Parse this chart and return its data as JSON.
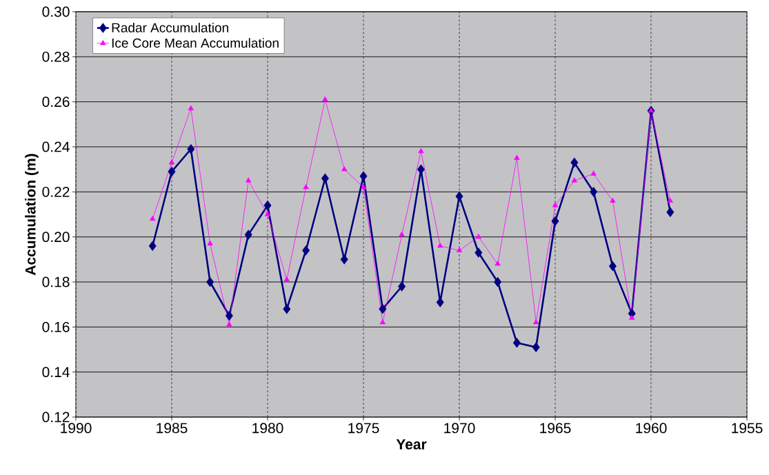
{
  "chart_data": {
    "type": "line",
    "xlabel": "Year",
    "ylabel": "Accumulation (m)",
    "x": [
      1986,
      1985,
      1984,
      1983,
      1982,
      1981,
      1980,
      1979,
      1978,
      1977,
      1976,
      1975,
      1974,
      1973,
      1972,
      1971,
      1970,
      1969,
      1968,
      1967,
      1966,
      1965,
      1964,
      1963,
      1962,
      1961,
      1960,
      1959
    ],
    "series": [
      {
        "name": "Radar Accumulation",
        "color": "#000080",
        "marker": "diamond",
        "values": [
          0.196,
          0.229,
          0.239,
          0.18,
          0.165,
          0.201,
          0.214,
          0.168,
          0.194,
          0.226,
          0.19,
          0.227,
          0.168,
          0.178,
          0.23,
          0.171,
          0.218,
          0.193,
          0.18,
          0.153,
          0.151,
          0.207,
          0.233,
          0.22,
          0.187,
          0.166,
          0.256,
          0.211
        ]
      },
      {
        "name": "Ice Core Mean Accumulation",
        "color": "#ff00ff",
        "marker": "triangle",
        "values": [
          0.208,
          0.233,
          0.257,
          0.197,
          0.161,
          0.225,
          0.21,
          0.181,
          0.222,
          0.261,
          0.23,
          0.222,
          0.162,
          0.201,
          0.238,
          0.196,
          0.194,
          0.2,
          0.188,
          0.235,
          0.162,
          0.214,
          0.225,
          0.228,
          0.216,
          0.164,
          0.256,
          0.216
        ]
      }
    ],
    "xlim": [
      1990,
      1955
    ],
    "xticks": [
      1990,
      1985,
      1980,
      1975,
      1970,
      1965,
      1960,
      1955
    ],
    "ylim": [
      0.12,
      0.3
    ],
    "yticks": [
      {
        "value": 0.12,
        "label": "0.12"
      },
      {
        "value": 0.14,
        "label": "0.14"
      },
      {
        "value": 0.16,
        "label": "0.16"
      },
      {
        "value": 0.18,
        "label": "0.18"
      },
      {
        "value": 0.2,
        "label": "0.20"
      },
      {
        "value": 0.22,
        "label": "0.22"
      },
      {
        "value": 0.24,
        "label": "0.24"
      },
      {
        "value": 0.26,
        "label": "0.26"
      },
      {
        "value": 0.28,
        "label": "0.28"
      },
      {
        "value": 0.3,
        "label": "0.30"
      }
    ],
    "grid": true,
    "legend": "top left"
  }
}
